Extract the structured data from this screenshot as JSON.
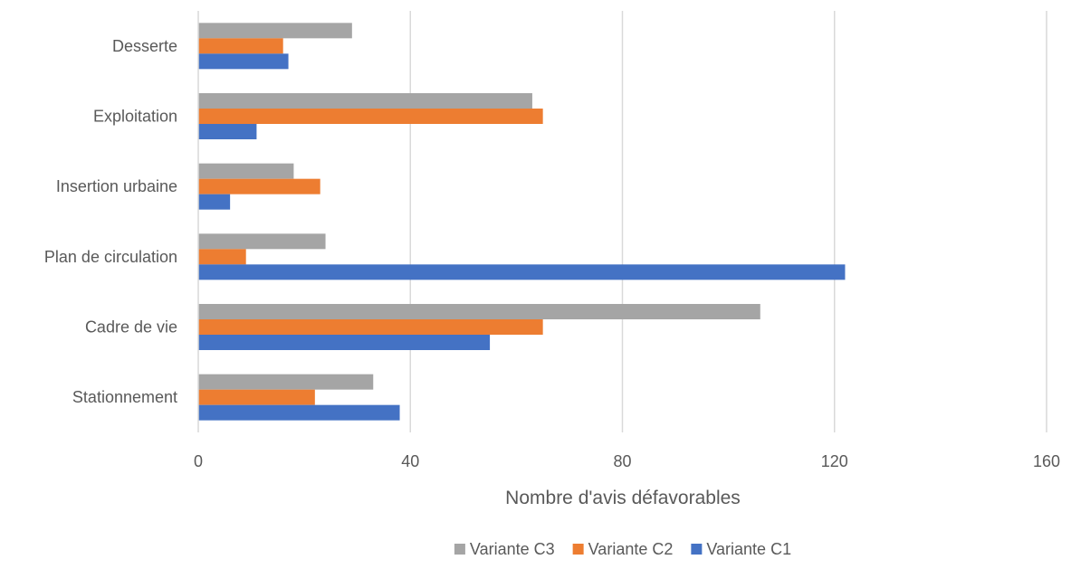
{
  "chart_data": {
    "type": "bar",
    "orientation": "horizontal",
    "title": "",
    "xlabel": "Nombre d'avis défavorables",
    "ylabel": "",
    "categories": [
      "Desserte",
      "Exploitation",
      "Insertion urbaine",
      "Plan de circulation",
      "Cadre de vie",
      "Stationnement"
    ],
    "series": [
      {
        "name": "Variante C3",
        "color": "#a5a5a5",
        "values": [
          29,
          63,
          18,
          24,
          106,
          33
        ]
      },
      {
        "name": "Variante C2",
        "color": "#ed7d31",
        "values": [
          16,
          65,
          23,
          9,
          65,
          22
        ]
      },
      {
        "name": "Variante C1",
        "color": "#4472c4",
        "values": [
          17,
          11,
          6,
          122,
          55,
          38
        ]
      }
    ],
    "xlim": [
      0,
      160
    ],
    "xticks": [
      "0",
      "40",
      "80",
      "120",
      "160"
    ],
    "grid": true,
    "legend_position": "bottom",
    "legend_order": [
      "Variante C3",
      "Variante C2",
      "Variante C1"
    ]
  }
}
